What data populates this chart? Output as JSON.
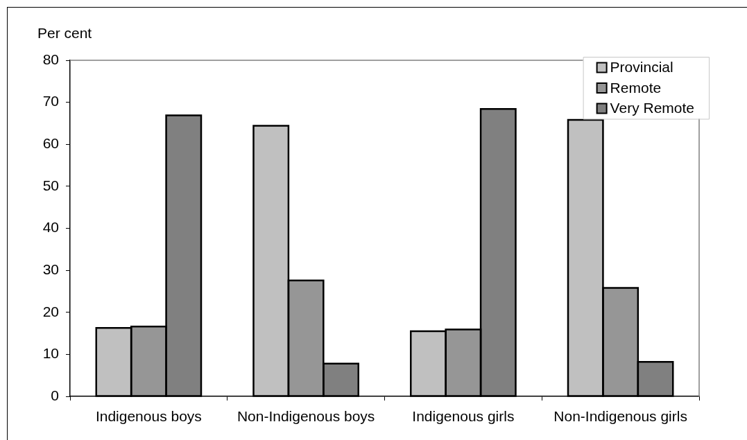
{
  "chart_data": {
    "type": "bar",
    "ylabel": "Per cent",
    "categories": [
      "Indigenous boys",
      "Non-Indigenous boys",
      "Indigenous girls",
      "Non-Indigenous girls"
    ],
    "series": [
      {
        "name": "Provincial",
        "color": "#c0c0c0",
        "values": [
          16.3,
          64.4,
          15.5,
          65.8
        ]
      },
      {
        "name": "Remote",
        "color": "#969696",
        "values": [
          16.6,
          27.6,
          15.9,
          25.8
        ]
      },
      {
        "name": "Very Remote",
        "color": "#808080",
        "values": [
          66.9,
          7.8,
          68.4,
          8.2
        ]
      }
    ],
    "ylim": [
      0,
      80
    ],
    "yticks": [
      0,
      10,
      20,
      30,
      40,
      50,
      60,
      70,
      80
    ],
    "legend": "top right"
  }
}
